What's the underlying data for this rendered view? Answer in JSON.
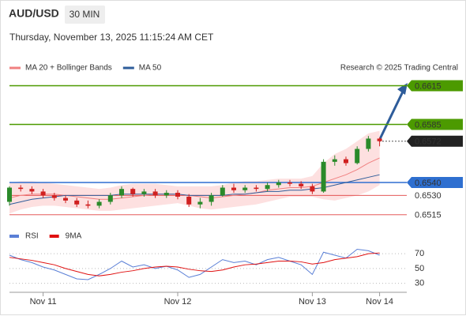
{
  "header": {
    "symbol": "AUD/USD",
    "timeframe": "30 MIN",
    "datetime": "Thursday, November 13, 2025 11:15:24 AM CET",
    "credit": "Research © 2025 Trading Central"
  },
  "chart_data": [
    {
      "type": "candlestick",
      "up_color": "#2a8a2a",
      "down_color": "#d02020",
      "open": [
        0.6525,
        0.6536,
        0.6535,
        0.6533,
        0.653,
        0.6528,
        0.6526,
        0.6523,
        0.6522,
        0.6525,
        0.653,
        0.6535,
        0.6531,
        0.6533,
        0.653,
        0.6532,
        0.6529,
        0.6523,
        0.6525,
        0.653,
        0.6536,
        0.6534,
        0.6536,
        0.6535,
        0.6538,
        0.654,
        0.6539,
        0.6537,
        0.6533,
        0.6556,
        0.6558,
        0.6555,
        0.6566,
        0.6574
      ],
      "high": [
        0.6537,
        0.6538,
        0.6537,
        0.6535,
        0.6532,
        0.653,
        0.6528,
        0.6526,
        0.6527,
        0.6532,
        0.6537,
        0.6536,
        0.6535,
        0.6535,
        0.6534,
        0.6534,
        0.6531,
        0.6528,
        0.6532,
        0.6538,
        0.6539,
        0.6538,
        0.6538,
        0.654,
        0.6542,
        0.6542,
        0.6541,
        0.6539,
        0.6558,
        0.6561,
        0.656,
        0.6568,
        0.6576,
        0.6575
      ],
      "low": [
        0.6522,
        0.6533,
        0.6531,
        0.6528,
        0.6526,
        0.6524,
        0.6521,
        0.652,
        0.652,
        0.6523,
        0.6528,
        0.6529,
        0.6529,
        0.6528,
        0.6528,
        0.6527,
        0.6521,
        0.652,
        0.6522,
        0.6529,
        0.6532,
        0.6532,
        0.6533,
        0.6533,
        0.6536,
        0.6537,
        0.6535,
        0.6531,
        0.6532,
        0.6553,
        0.6553,
        0.6554,
        0.6564,
        0.6568
      ],
      "close": [
        0.6536,
        0.6535,
        0.6533,
        0.653,
        0.6528,
        0.6526,
        0.6523,
        0.6522,
        0.6525,
        0.653,
        0.6535,
        0.6531,
        0.6533,
        0.653,
        0.6532,
        0.6529,
        0.6523,
        0.6525,
        0.653,
        0.6536,
        0.6534,
        0.6536,
        0.6535,
        0.6538,
        0.654,
        0.6539,
        0.6537,
        0.6533,
        0.6556,
        0.6558,
        0.6555,
        0.6566,
        0.6574,
        0.6572
      ],
      "series": [
        {
          "name": "MA 20 + Bollinger Bands",
          "color": "#f08080",
          "band_color": "#fde0e0",
          "values": [
            0.6528,
            0.653,
            0.6531,
            0.6531,
            0.6531,
            0.653,
            0.6529,
            0.6528,
            0.6527,
            0.6527,
            0.6528,
            0.6529,
            0.653,
            0.6531,
            0.6531,
            0.6531,
            0.653,
            0.6529,
            0.6528,
            0.6529,
            0.653,
            0.6531,
            0.6532,
            0.6534,
            0.6535,
            0.6536,
            0.6536,
            0.6537,
            0.654,
            0.6543,
            0.6546,
            0.655,
            0.6555,
            0.6559
          ],
          "upper": [
            0.654,
            0.6541,
            0.6541,
            0.654,
            0.6539,
            0.6538,
            0.6537,
            0.6536,
            0.6535,
            0.6536,
            0.6538,
            0.6539,
            0.6539,
            0.6539,
            0.6538,
            0.6537,
            0.6537,
            0.6537,
            0.6537,
            0.6538,
            0.654,
            0.6541,
            0.6541,
            0.6542,
            0.6543,
            0.6543,
            0.6543,
            0.6545,
            0.6555,
            0.6562,
            0.6566,
            0.6572,
            0.6578,
            0.658
          ],
          "lower": [
            0.6516,
            0.6519,
            0.6521,
            0.6522,
            0.6522,
            0.6521,
            0.652,
            0.6519,
            0.6518,
            0.6518,
            0.6519,
            0.652,
            0.6521,
            0.6522,
            0.6523,
            0.6524,
            0.6522,
            0.652,
            0.6519,
            0.652,
            0.6521,
            0.6522,
            0.6523,
            0.6525,
            0.6527,
            0.6529,
            0.6529,
            0.6529,
            0.6527,
            0.6526,
            0.6528,
            0.653,
            0.6533,
            0.6538
          ]
        },
        {
          "name": "MA 50",
          "color": "#2e5c9a",
          "values": [
            0.6523,
            0.6525,
            0.6527,
            0.6528,
            0.6529,
            0.653,
            0.653,
            0.653,
            0.653,
            0.653,
            0.6531,
            0.6531,
            0.6531,
            0.6531,
            0.6531,
            0.6531,
            0.653,
            0.653,
            0.653,
            0.653,
            0.6531,
            0.6531,
            0.6532,
            0.6533,
            0.6533,
            0.6534,
            0.6534,
            0.6535,
            0.6536,
            0.6538,
            0.654,
            0.6542,
            0.6544,
            0.6546
          ]
        }
      ],
      "ylim": [
        0.651,
        0.6622
      ],
      "levels": [
        {
          "value": 0.6615,
          "color": "#4c9a00",
          "label_style": "box",
          "line": "solid"
        },
        {
          "value": 0.6585,
          "color": "#4c9a00",
          "label_style": "box",
          "line": "solid"
        },
        {
          "value": 0.6572,
          "color": "#222222",
          "label_style": "box",
          "line": "dotted"
        },
        {
          "value": 0.654,
          "label": "0.6540",
          "color": "#2e6fd0",
          "label_style": "box",
          "line": "solid"
        },
        {
          "value": 0.653,
          "label": "0.6530",
          "color": "#e04040",
          "label_style": "text",
          "line": "thin"
        },
        {
          "value": 0.6515,
          "color": "#e04040",
          "label_style": "text",
          "line": "thin"
        }
      ]
    },
    {
      "type": "line",
      "categories": [
        null,
        null,
        null,
        "Nov 11",
        null,
        null,
        null,
        null,
        null,
        null,
        null,
        null,
        null,
        null,
        null,
        "Nov 12",
        null,
        null,
        null,
        null,
        null,
        null,
        null,
        null,
        null,
        null,
        null,
        "Nov 13",
        null,
        null,
        null,
        null,
        null,
        "Nov 14"
      ],
      "series": [
        {
          "name": "RSI",
          "color": "#5a7fd6",
          "values": [
            68,
            62,
            58,
            52,
            48,
            42,
            36,
            35,
            42,
            50,
            60,
            52,
            55,
            50,
            53,
            48,
            38,
            42,
            52,
            62,
            58,
            60,
            55,
            62,
            65,
            60,
            55,
            42,
            72,
            68,
            64,
            76,
            74,
            68
          ]
        },
        {
          "name": "9MA",
          "color": "#e01010",
          "values": [
            65,
            63,
            61,
            58,
            55,
            50,
            46,
            42,
            40,
            42,
            45,
            47,
            50,
            52,
            53,
            52,
            49,
            47,
            46,
            48,
            52,
            55,
            56,
            58,
            60,
            60,
            59,
            56,
            58,
            62,
            64,
            66,
            70,
            71
          ]
        }
      ],
      "ylim": [
        20,
        84
      ],
      "yticks": [
        70,
        50,
        30
      ],
      "grid": true
    }
  ]
}
